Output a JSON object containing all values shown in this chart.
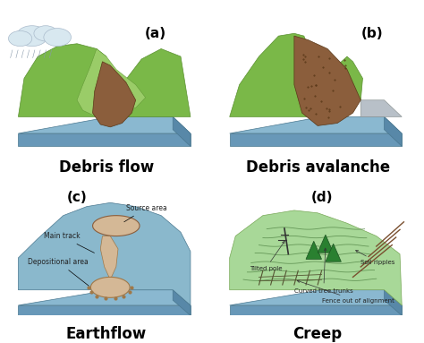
{
  "background_color": "#ffffff",
  "fig_width": 4.74,
  "fig_height": 3.83,
  "dpi": 100,
  "panels": [
    {
      "label": "(a)",
      "title": "Debris flow",
      "row": 0,
      "col": 0
    },
    {
      "label": "(b)",
      "title": "Debris avalanche",
      "row": 0,
      "col": 1
    },
    {
      "label": "(c)",
      "title": "Earthflow",
      "row": 1,
      "col": 0
    },
    {
      "label": "(d)",
      "title": "Creep",
      "row": 1,
      "col": 1
    }
  ],
  "label_fontsize": 11,
  "title_fontsize": 12,
  "colors": {
    "slab_top": "#8ab8d0",
    "slab_front": "#6898b8",
    "slab_right": "#5888a8",
    "slab_edge": "#4a7890",
    "green": "#7ab848",
    "green_edge": "#5a9030",
    "brown": "#8B5E3C",
    "brown_edge": "#5a3818",
    "tan": "#d4b896",
    "tan_edge": "#a07848",
    "gray_plat": "#b8c0c8",
    "gray_edge": "#909898",
    "hill_blue": "#8ab8cc",
    "hill_edge": "#4a7890",
    "green_creep": "#a8d898",
    "green_c_edge": "#78a858",
    "dark_green": "#2a8030",
    "dk_g_edge": "#1a5020"
  }
}
